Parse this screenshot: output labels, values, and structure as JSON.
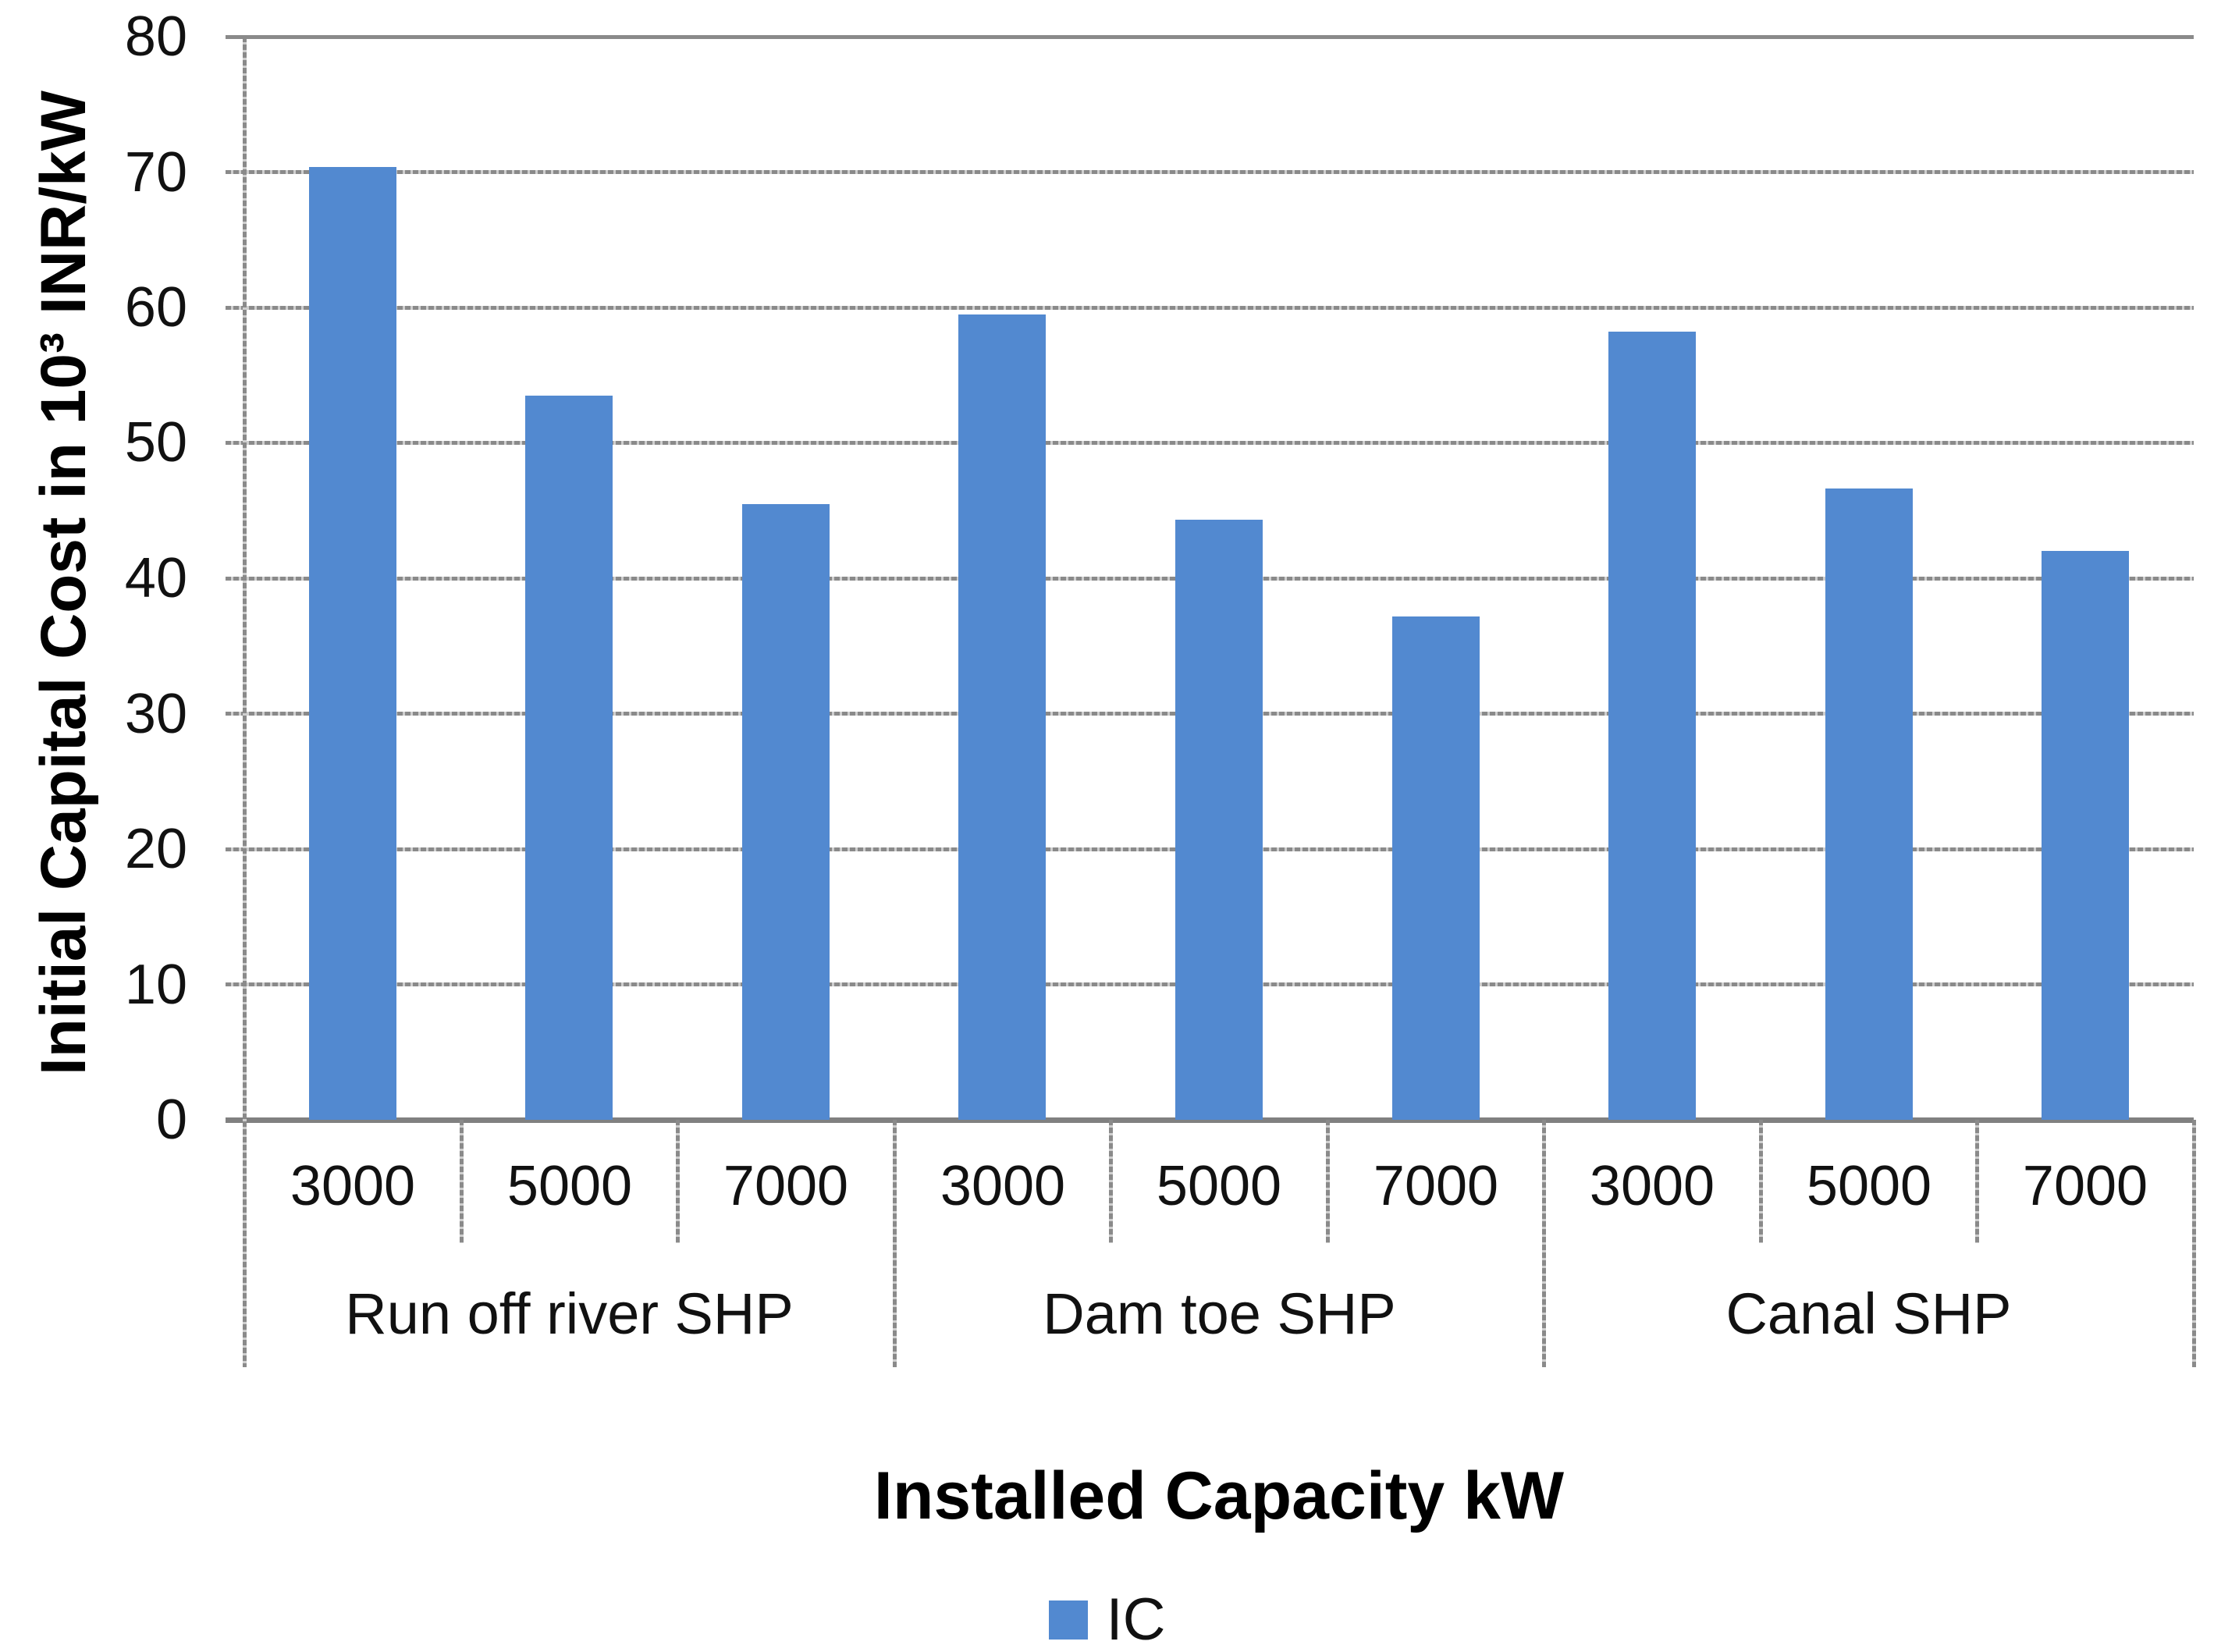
{
  "chart_data": {
    "type": "bar",
    "title": "",
    "ylabel": "Initial Capital Cost in 10³ INR/kW",
    "xlabel": "Installed Capacity kW",
    "ylim": [
      0,
      80
    ],
    "yticks": [
      0,
      10,
      20,
      30,
      40,
      50,
      60,
      70,
      80
    ],
    "grid": "horizontal, dotted gray; solid top border and solid baseline",
    "legend_position": "bottom-center",
    "legend": [
      {
        "label": "IC",
        "color": "#5289D0"
      }
    ],
    "bar_color": "#5289D0",
    "grid_color": "#8a8a8a",
    "text_color": "#111111",
    "groups": [
      {
        "label": "Run off river SHP",
        "categories": [
          "3000",
          "5000",
          "7000"
        ],
        "values": [
          70.4,
          53.5,
          45.5
        ]
      },
      {
        "label": "Dam toe SHP",
        "categories": [
          "3000",
          "5000",
          "7000"
        ],
        "values": [
          59.5,
          44.3,
          37.2
        ]
      },
      {
        "label": "Canal SHP",
        "categories": [
          "3000",
          "5000",
          "7000"
        ],
        "values": [
          58.2,
          46.6,
          42.0
        ]
      }
    ]
  }
}
